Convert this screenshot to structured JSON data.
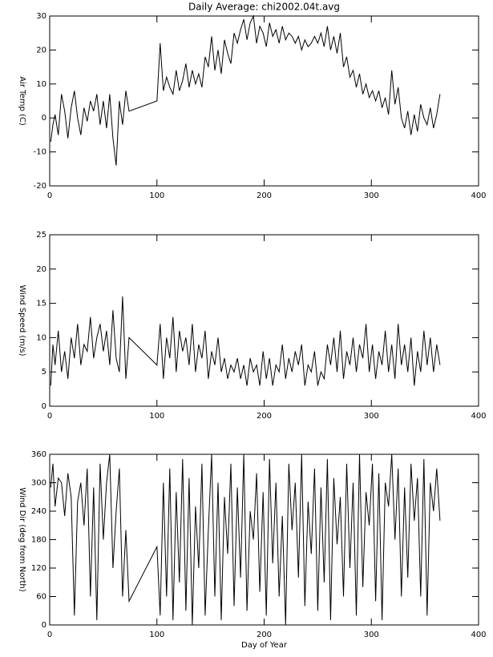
{
  "chart_data": [
    {
      "type": "line",
      "title": "Daily Average: chi2002.04t.avg",
      "ylabel": "Air Temp (C)",
      "color": "#000000",
      "x": [
        1,
        3,
        5,
        8,
        11,
        14,
        17,
        20,
        23,
        26,
        29,
        32,
        35,
        38,
        41,
        44,
        47,
        50,
        53,
        56,
        59,
        62,
        65,
        68,
        71,
        74,
        100,
        103,
        106,
        109,
        112,
        115,
        118,
        121,
        124,
        127,
        130,
        133,
        136,
        139,
        142,
        145,
        148,
        151,
        154,
        157,
        160,
        163,
        166,
        169,
        172,
        175,
        178,
        181,
        184,
        187,
        190,
        193,
        196,
        199,
        202,
        205,
        208,
        211,
        214,
        217,
        220,
        223,
        226,
        229,
        232,
        235,
        238,
        241,
        244,
        247,
        250,
        253,
        256,
        259,
        262,
        265,
        268,
        271,
        274,
        277,
        280,
        283,
        286,
        289,
        292,
        295,
        298,
        301,
        304,
        307,
        310,
        313,
        316,
        319,
        322,
        325,
        328,
        331,
        334,
        337,
        340,
        343,
        346,
        349,
        352,
        355,
        358,
        361,
        364
      ],
      "values": [
        -7,
        -2,
        1,
        -5,
        7,
        2,
        -6,
        3,
        8,
        0,
        -5,
        3,
        -1,
        5,
        2,
        7,
        -2,
        5,
        -3,
        7,
        -6,
        -14,
        5,
        -2,
        8,
        2,
        5,
        22,
        8,
        12,
        9,
        7,
        14,
        8,
        11,
        16,
        9,
        14,
        10,
        13,
        9,
        18,
        15,
        24,
        14,
        20,
        13,
        23,
        19,
        16,
        25,
        22,
        26,
        29,
        23,
        28,
        30,
        22,
        27,
        25,
        21,
        28,
        24,
        26,
        22,
        27,
        23,
        25,
        24,
        22,
        24,
        20,
        23,
        21,
        22,
        24,
        22,
        25,
        21,
        27,
        20,
        24,
        19,
        25,
        15,
        18,
        12,
        14,
        9,
        13,
        7,
        10,
        6,
        8,
        5,
        8,
        3,
        6,
        1,
        14,
        4,
        9,
        0,
        -3,
        2,
        -5,
        1,
        -4,
        4,
        0,
        -2,
        3,
        -3,
        1,
        7
      ],
      "xlim": [
        0,
        400
      ],
      "xticks": [
        0,
        100,
        200,
        300,
        400
      ],
      "ylim": [
        -20,
        30
      ],
      "yticks": [
        -20,
        -10,
        0,
        10,
        20,
        30
      ]
    },
    {
      "type": "line",
      "ylabel": "Wind Speed (m/s)",
      "color": "#000000",
      "x": [
        1,
        3,
        5,
        8,
        11,
        14,
        17,
        20,
        23,
        26,
        29,
        32,
        35,
        38,
        41,
        44,
        47,
        50,
        53,
        56,
        59,
        62,
        65,
        68,
        71,
        74,
        100,
        103,
        106,
        109,
        112,
        115,
        118,
        121,
        124,
        127,
        130,
        133,
        136,
        139,
        142,
        145,
        148,
        151,
        154,
        157,
        160,
        163,
        166,
        169,
        172,
        175,
        178,
        181,
        184,
        187,
        190,
        193,
        196,
        199,
        202,
        205,
        208,
        211,
        214,
        217,
        220,
        223,
        226,
        229,
        232,
        235,
        238,
        241,
        244,
        247,
        250,
        253,
        256,
        259,
        262,
        265,
        268,
        271,
        274,
        277,
        280,
        283,
        286,
        289,
        292,
        295,
        298,
        301,
        304,
        307,
        310,
        313,
        316,
        319,
        322,
        325,
        328,
        331,
        334,
        337,
        340,
        343,
        346,
        349,
        352,
        355,
        358,
        361,
        364
      ],
      "values": [
        3,
        9,
        6,
        11,
        5,
        8,
        4,
        10,
        7,
        12,
        6,
        9,
        8,
        13,
        7,
        10,
        12,
        8,
        11,
        6,
        14,
        7,
        5,
        16,
        4,
        10,
        6,
        12,
        4,
        10,
        7,
        13,
        5,
        11,
        8,
        10,
        6,
        12,
        5,
        9,
        7,
        11,
        4,
        8,
        6,
        10,
        5,
        7,
        4,
        6,
        5,
        7,
        4,
        6,
        3,
        7,
        5,
        6,
        3,
        8,
        4,
        7,
        3,
        6,
        5,
        9,
        4,
        7,
        5,
        8,
        6,
        9,
        3,
        6,
        5,
        8,
        3,
        5,
        4,
        9,
        6,
        10,
        5,
        11,
        4,
        8,
        6,
        10,
        5,
        9,
        7,
        12,
        5,
        9,
        4,
        8,
        6,
        11,
        5,
        9,
        4,
        12,
        6,
        9,
        5,
        10,
        3,
        8,
        5,
        11,
        6,
        10,
        5,
        9,
        6
      ],
      "xlim": [
        0,
        400
      ],
      "xticks": [
        0,
        100,
        200,
        300,
        400
      ],
      "ylim": [
        0,
        25
      ],
      "yticks": [
        0,
        5,
        10,
        15,
        20,
        25
      ]
    },
    {
      "type": "line",
      "ylabel": "Wind Dir (deg from North)",
      "xlabel": "Day of Year",
      "color": "#000000",
      "x": [
        1,
        3,
        5,
        8,
        11,
        14,
        17,
        20,
        23,
        26,
        29,
        32,
        35,
        38,
        41,
        44,
        47,
        50,
        53,
        56,
        59,
        62,
        65,
        68,
        71,
        74,
        100,
        103,
        106,
        109,
        112,
        115,
        118,
        121,
        124,
        127,
        130,
        133,
        136,
        139,
        142,
        145,
        148,
        151,
        154,
        157,
        160,
        163,
        166,
        169,
        172,
        175,
        178,
        181,
        184,
        187,
        190,
        193,
        196,
        199,
        202,
        205,
        208,
        211,
        214,
        217,
        220,
        223,
        226,
        229,
        232,
        235,
        238,
        241,
        244,
        247,
        250,
        253,
        256,
        259,
        262,
        265,
        268,
        271,
        274,
        277,
        280,
        283,
        286,
        289,
        292,
        295,
        298,
        301,
        304,
        307,
        310,
        313,
        316,
        319,
        322,
        325,
        328,
        331,
        334,
        337,
        340,
        343,
        346,
        349,
        352,
        355,
        358,
        361,
        364
      ],
      "values": [
        290,
        340,
        250,
        310,
        300,
        230,
        320,
        270,
        20,
        260,
        300,
        210,
        330,
        60,
        290,
        10,
        340,
        180,
        300,
        360,
        120,
        240,
        330,
        60,
        200,
        50,
        165,
        20,
        300,
        60,
        330,
        10,
        280,
        90,
        350,
        30,
        310,
        0,
        250,
        120,
        340,
        20,
        200,
        360,
        60,
        300,
        10,
        270,
        150,
        340,
        40,
        290,
        100,
        360,
        30,
        240,
        180,
        320,
        70,
        280,
        20,
        350,
        130,
        300,
        60,
        230,
        0,
        340,
        200,
        300,
        100,
        360,
        40,
        260,
        150,
        330,
        30,
        290,
        90,
        350,
        10,
        310,
        170,
        270,
        60,
        340,
        120,
        300,
        20,
        360,
        80,
        280,
        210,
        340,
        50,
        320,
        10,
        300,
        250,
        360,
        180,
        330,
        60,
        290,
        100,
        340,
        220,
        310,
        60,
        350,
        20,
        300,
        240,
        330,
        220
      ],
      "xlim": [
        0,
        400
      ],
      "xticks": [
        0,
        100,
        200,
        300,
        400
      ],
      "ylim": [
        0,
        360
      ],
      "yticks": [
        0,
        60,
        120,
        180,
        240,
        300,
        360
      ]
    }
  ]
}
